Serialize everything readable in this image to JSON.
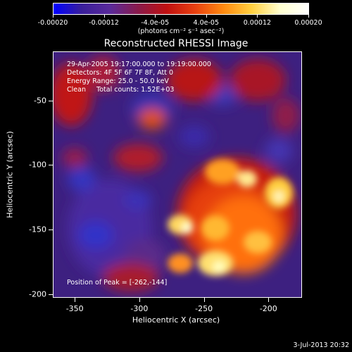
{
  "colorbar": {
    "colors": [
      "#0000ff",
      "#3a1f9a",
      "#5a2a9a",
      "#8a1a4a",
      "#c01010",
      "#e84010",
      "#ff8a10",
      "#ffd040",
      "#ffffd0",
      "#ffffff"
    ],
    "tick_labels": [
      "-0.00020",
      "-0.00012",
      "-4.0e-05",
      "4.0e-05",
      "0.00012",
      "0.00020"
    ],
    "tick_values": [
      -0.0002,
      -0.00012,
      -4e-05,
      4e-05,
      0.00012,
      0.0002
    ],
    "range": [
      -0.0002,
      0.0002
    ],
    "units": "(photons cm⁻² s⁻¹ asec⁻²)"
  },
  "title": "Reconstructed RHESSI Image",
  "info": {
    "time": "29-Apr-2005 19:17:00.000 to 19:19:00.000",
    "detectors": "Detectors: 4F 5F 6F 7F 8F, Att 0",
    "energy": "Energy Range: 25.0 - 50.0 keV",
    "clean": "Clean     Total counts: 1.52E+03"
  },
  "peak": "Position of Peak = [-262,-144]",
  "x_axis": {
    "title": "Heliocentric X (arcsec)",
    "range": [
      -367,
      -174
    ],
    "tick_labels": [
      "-350",
      "-300",
      "-250",
      "-200"
    ],
    "tick_values": [
      -350,
      -300,
      -250,
      -200
    ]
  },
  "y_axis": {
    "title": "Heliocentric Y (arcsec)",
    "range": [
      -203,
      -12
    ],
    "tick_labels": [
      "-50",
      "-100",
      "-150",
      "-200"
    ],
    "tick_values": [
      -50,
      -100,
      -150,
      -200
    ]
  },
  "timestamp": "3-Jul-2013 20:32"
}
